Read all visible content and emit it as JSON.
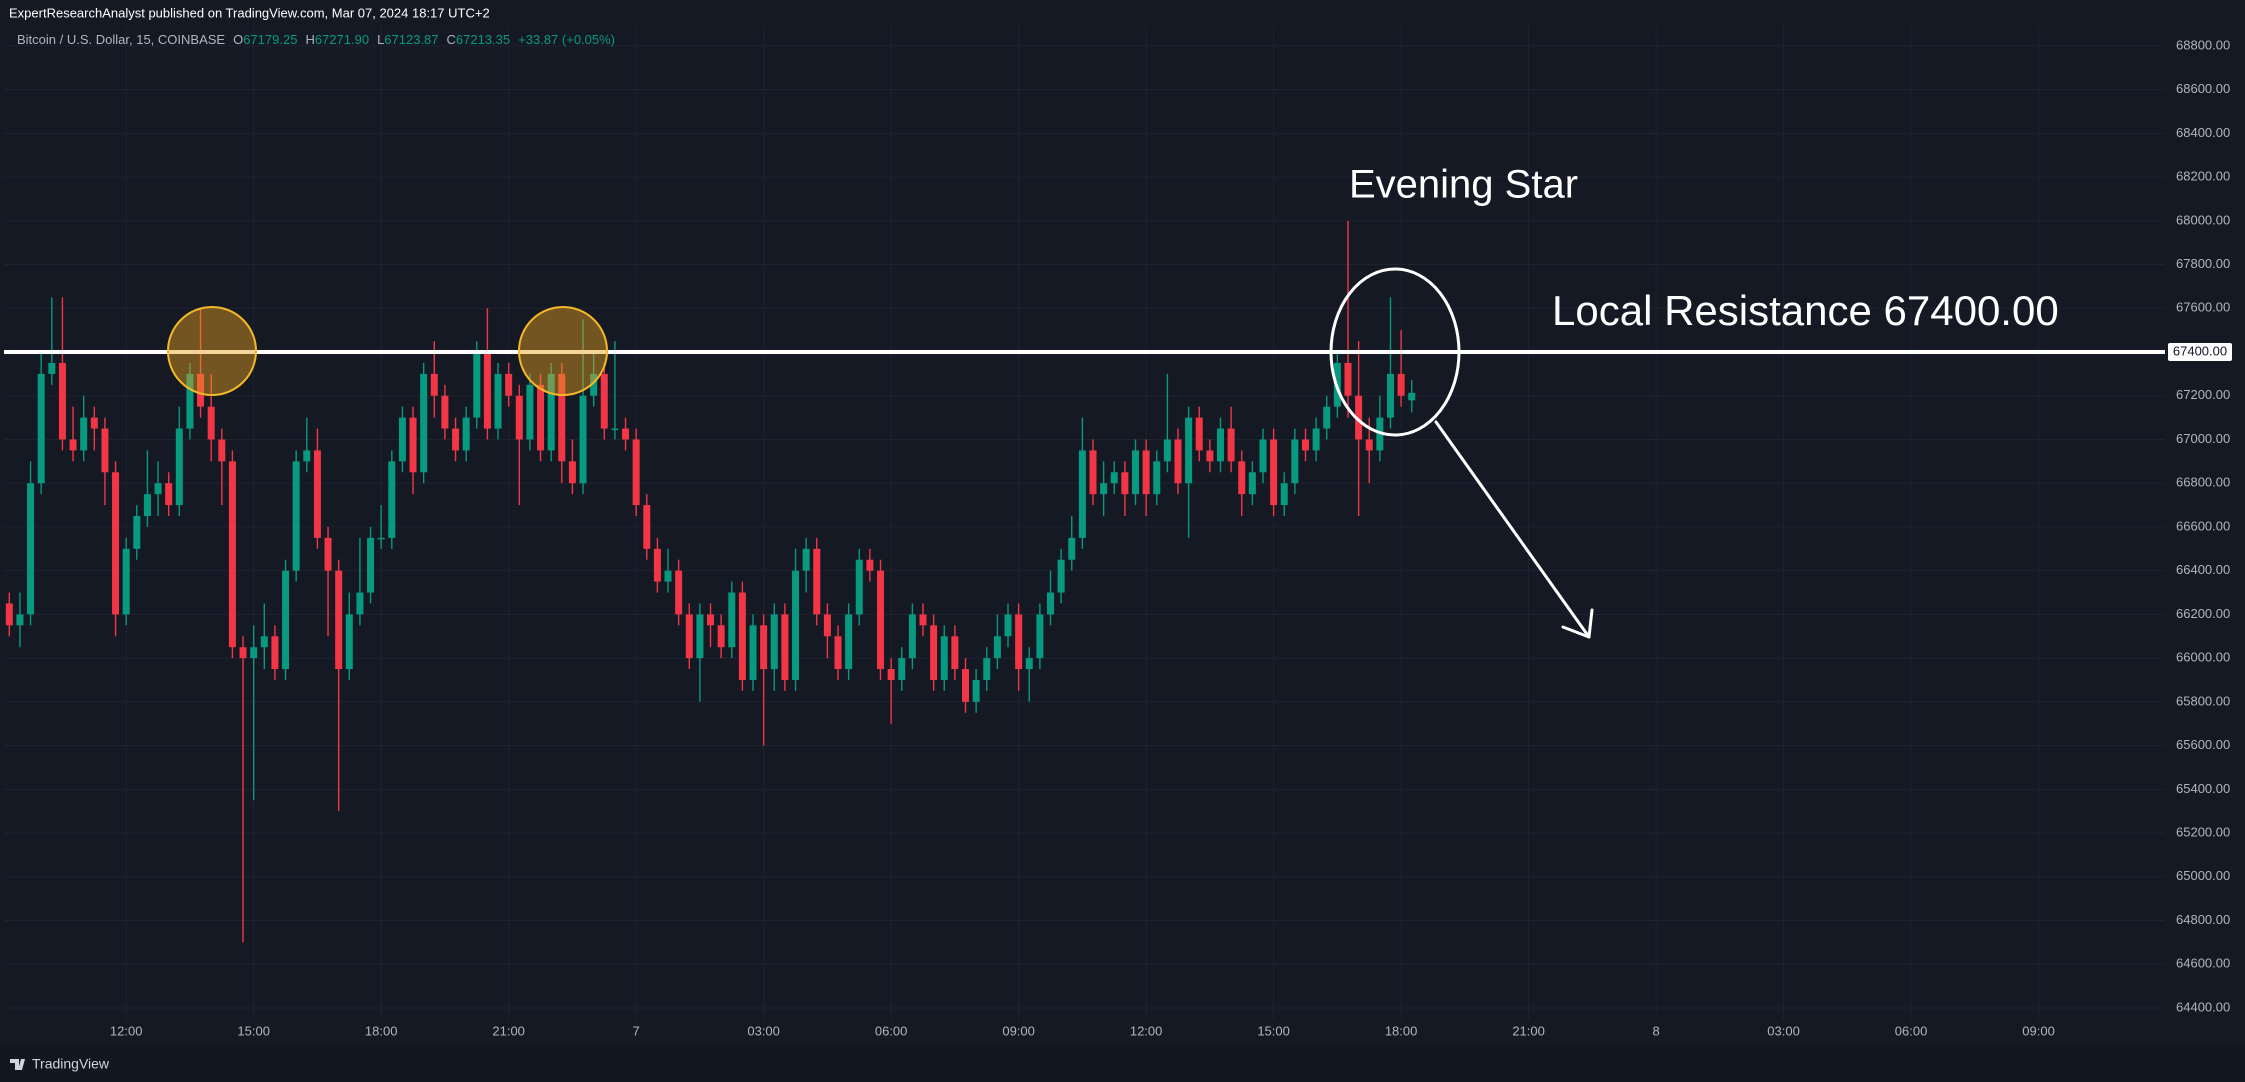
{
  "publisher": "ExpertResearchAnalyst published on TradingView.com, Mar 07, 2024 18:17 UTC+2",
  "footer": "TradingView",
  "chart_data": {
    "type": "candlestick",
    "symbol": "Bitcoin / U.S. Dollar, 15, COINBASE",
    "ohlc": [
      {
        "key": "O",
        "value": "67179.25"
      },
      {
        "key": "H",
        "value": "67271.90"
      },
      {
        "key": "L",
        "value": "67123.87"
      },
      {
        "key": "C",
        "value": "67213.35"
      }
    ],
    "change": "+33.87 (+0.05%)",
    "up_color": "#089981",
    "down_color": "#f23645",
    "open": [
      66250,
      66150,
      66200,
      66800,
      67300,
      67350,
      67000,
      66950,
      67100,
      67050,
      66850,
      66200,
      66500,
      66650,
      66750,
      66800,
      66700,
      67050,
      67300,
      67150,
      67000,
      66900,
      66050,
      66000,
      66050,
      66100,
      65950,
      66400,
      66900,
      66950,
      66550,
      66400,
      65950,
      66200,
      66300,
      66550,
      66550,
      66900,
      67100,
      66850,
      67300,
      67200,
      67050,
      66950,
      67100,
      67400,
      67050,
      67300,
      67200,
      67000,
      67250,
      66950,
      67300,
      66900,
      66800,
      67200,
      67300,
      67050,
      67050,
      67000,
      66700,
      66500,
      66350,
      66400,
      66200,
      66000,
      66200,
      66150,
      66050,
      66300,
      65900,
      66150,
      65950,
      66200,
      65900,
      66400,
      66500,
      66200,
      66100,
      65950,
      66200,
      66450,
      66400,
      65950,
      65900,
      66000,
      66200,
      66150,
      65900,
      66100,
      65950,
      65800,
      65900,
      66000,
      66100,
      66200,
      65950,
      66000,
      66200,
      66300,
      66450,
      66550,
      66950,
      66750,
      66800,
      66850,
      66750,
      66950,
      66750,
      66900,
      67000,
      66800,
      67100,
      66950,
      66900,
      67050,
      66900,
      66750,
      66850,
      67000,
      66700,
      66800,
      67000,
      66950,
      67050,
      67150,
      67350,
      67200,
      67000,
      66950,
      67100,
      67300,
      67179.25
    ],
    "high": [
      66300,
      66300,
      66900,
      67400,
      67650,
      67650,
      67150,
      67200,
      67150,
      67100,
      66900,
      66550,
      66700,
      66950,
      66900,
      66850,
      67150,
      67350,
      67600,
      67300,
      67050,
      66950,
      66100,
      66150,
      66250,
      66150,
      66450,
      66950,
      67100,
      67050,
      66600,
      66450,
      66300,
      66550,
      66600,
      66700,
      66950,
      67150,
      67150,
      67350,
      67450,
      67250,
      67100,
      67150,
      67450,
      67600,
      67350,
      67350,
      67250,
      67300,
      67300,
      67350,
      67350,
      67000,
      67550,
      67400,
      67350,
      67450,
      67100,
      67050,
      66750,
      66550,
      66500,
      66450,
      66250,
      66250,
      66250,
      66200,
      66350,
      66350,
      66200,
      66200,
      66250,
      66250,
      66500,
      66550,
      66550,
      66250,
      66150,
      66250,
      66500,
      66500,
      66450,
      66000,
      66050,
      66250,
      66250,
      66200,
      66150,
      66150,
      66000,
      65950,
      66050,
      66200,
      66250,
      66250,
      66050,
      66250,
      66400,
      66500,
      66650,
      67100,
      67000,
      66900,
      66900,
      66900,
      67000,
      67000,
      66950,
      67300,
      67050,
      67150,
      67150,
      67000,
      67100,
      67150,
      66950,
      66900,
      67050,
      67050,
      66850,
      67050,
      67050,
      67100,
      67200,
      67400,
      68000,
      67450,
      67100,
      67200,
      67650,
      67500,
      67271.9
    ],
    "low": [
      66100,
      66050,
      66150,
      66750,
      67250,
      66950,
      66900,
      66900,
      66950,
      66700,
      66100,
      66150,
      66450,
      66600,
      66650,
      66650,
      66650,
      67000,
      67100,
      66900,
      66700,
      66000,
      64700,
      65350,
      65950,
      65900,
      65900,
      66350,
      66850,
      66500,
      66100,
      65300,
      65900,
      66150,
      66250,
      66500,
      66500,
      66850,
      66750,
      66800,
      67100,
      67000,
      66900,
      66900,
      67050,
      67000,
      67000,
      67150,
      66700,
      66950,
      66900,
      66900,
      66800,
      66750,
      66750,
      67150,
      67000,
      67000,
      66950,
      66650,
      66450,
      66300,
      66300,
      66150,
      65950,
      65800,
      66050,
      66000,
      66000,
      65850,
      65850,
      65600,
      65850,
      65850,
      65850,
      66300,
      66150,
      66000,
      65900,
      65900,
      66150,
      66350,
      65900,
      65700,
      65850,
      65950,
      66100,
      65850,
      65850,
      65900,
      65750,
      65750,
      65850,
      65950,
      66050,
      65850,
      65800,
      65950,
      66150,
      66250,
      66400,
      66500,
      66700,
      66650,
      66750,
      66650,
      66700,
      66650,
      66700,
      66850,
      66750,
      66550,
      66900,
      66850,
      66850,
      66850,
      66650,
      66700,
      66800,
      66650,
      66650,
      66750,
      66900,
      66900,
      67000,
      67100,
      67100,
      66650,
      66800,
      66900,
      67050,
      67150,
      67123.87
    ],
    "close": [
      66150,
      66200,
      66800,
      67300,
      67350,
      67000,
      66950,
      67100,
      67050,
      66850,
      66200,
      66500,
      66650,
      66750,
      66800,
      66700,
      67050,
      67300,
      67150,
      67000,
      66900,
      66050,
      66000,
      66050,
      66100,
      65950,
      66400,
      66900,
      66950,
      66550,
      66400,
      65950,
      66200,
      66300,
      66550,
      66550,
      66900,
      67100,
      66850,
      67300,
      67200,
      67050,
      66950,
      67100,
      67400,
      67050,
      67300,
      67200,
      67000,
      67250,
      66950,
      67300,
      66900,
      66800,
      67200,
      67300,
      67050,
      67050,
      67000,
      66700,
      66500,
      66350,
      66400,
      66200,
      66000,
      66200,
      66150,
      66050,
      66300,
      65900,
      66150,
      65950,
      66200,
      65900,
      66400,
      66500,
      66200,
      66100,
      65950,
      66200,
      66450,
      66400,
      65950,
      65900,
      66000,
      66200,
      66150,
      65900,
      66100,
      65950,
      65800,
      65900,
      66000,
      66100,
      66200,
      65950,
      66000,
      66200,
      66300,
      66450,
      66550,
      66950,
      66750,
      66800,
      66850,
      66750,
      66950,
      66750,
      66900,
      67000,
      66800,
      67100,
      66950,
      66900,
      67050,
      66900,
      66750,
      66850,
      67000,
      66700,
      66800,
      67000,
      66950,
      67050,
      67150,
      67350,
      67200,
      67000,
      66950,
      67100,
      67300,
      67200,
      67213.35
    ],
    "xlim": [
      -0.5,
      202.9
    ],
    "xticks": [
      {
        "value": 11,
        "label": "12:00"
      },
      {
        "value": 23,
        "label": "15:00"
      },
      {
        "value": 35,
        "label": "18:00"
      },
      {
        "value": 47,
        "label": "21:00"
      },
      {
        "value": 59,
        "label": "7"
      },
      {
        "value": 71,
        "label": "03:00"
      },
      {
        "value": 83,
        "label": "06:00"
      },
      {
        "value": 95,
        "label": "09:00"
      },
      {
        "value": 107,
        "label": "12:00"
      },
      {
        "value": 119,
        "label": "15:00"
      },
      {
        "value": 131,
        "label": "18:00"
      },
      {
        "value": 143,
        "label": "21:00"
      },
      {
        "value": 155,
        "label": "8"
      },
      {
        "value": 167,
        "label": "03:00"
      },
      {
        "value": 179,
        "label": "06:00"
      },
      {
        "value": 191,
        "label": "09:00"
      }
    ],
    "ylim": [
      64345,
      68891
    ],
    "yticks": [
      {
        "value": 64400,
        "label": "64400.00"
      },
      {
        "value": 64600,
        "label": "64600.00"
      },
      {
        "value": 64800,
        "label": "64800.00"
      },
      {
        "value": 65000,
        "label": "65000.00"
      },
      {
        "value": 65200,
        "label": "65200.00"
      },
      {
        "value": 65400,
        "label": "65400.00"
      },
      {
        "value": 65600,
        "label": "65600.00"
      },
      {
        "value": 65800,
        "label": "65800.00"
      },
      {
        "value": 66000,
        "label": "66000.00"
      },
      {
        "value": 66200,
        "label": "66200.00"
      },
      {
        "value": 66400,
        "label": "66400.00"
      },
      {
        "value": 66600,
        "label": "66600.00"
      },
      {
        "value": 66800,
        "label": "66800.00"
      },
      {
        "value": 67000,
        "label": "67000.00"
      },
      {
        "value": 67200,
        "label": "67200.00"
      },
      {
        "value": 67400,
        "label": "67400.00"
      },
      {
        "value": 67600,
        "label": "67600.00"
      },
      {
        "value": 67800,
        "label": "67800.00"
      },
      {
        "value": 68000,
        "label": "68000.00"
      },
      {
        "value": 68200,
        "label": "68200.00"
      },
      {
        "value": 68400,
        "label": "68400.00"
      },
      {
        "value": 68600,
        "label": "68600.00"
      },
      {
        "value": 68800,
        "label": "68800.00"
      }
    ],
    "grid": true,
    "resistance": {
      "value": 67400,
      "label": "67400.00"
    },
    "annotations": [
      "Evening Star",
      "Local Resistance 67400.00"
    ]
  }
}
